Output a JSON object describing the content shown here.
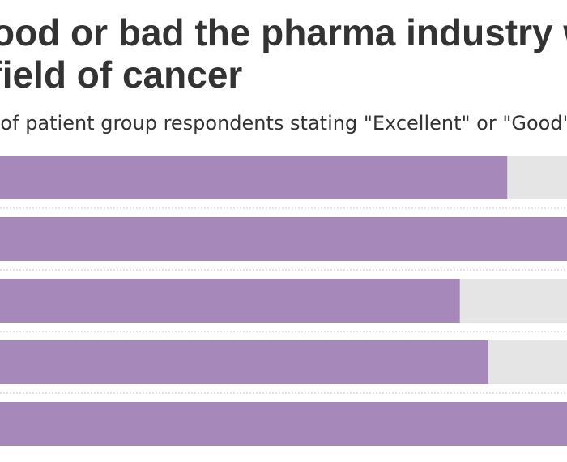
{
  "title_lines": [
    "How good or bad the pharma industry was",
    "in the field of cancer"
  ],
  "subtitle": "% of patient group respondents stating \"Excellent\" or \"Good\"",
  "chart_data": {
    "type": "bar",
    "orientation": "horizontal",
    "title": "How good or bad the pharma industry was in the field of cancer",
    "subtitle": "% of patient group respondents stating \"Excellent\" or \"Good\"",
    "series": [
      {
        "values": [
          86,
          93,
          81,
          84,
          93
        ]
      }
    ],
    "ylim": [
      0,
      100
    ],
    "colors": {
      "bar": "#a689ba",
      "track": "#e5e5e5",
      "separator": "#c8c8c8"
    },
    "grid": false
  }
}
